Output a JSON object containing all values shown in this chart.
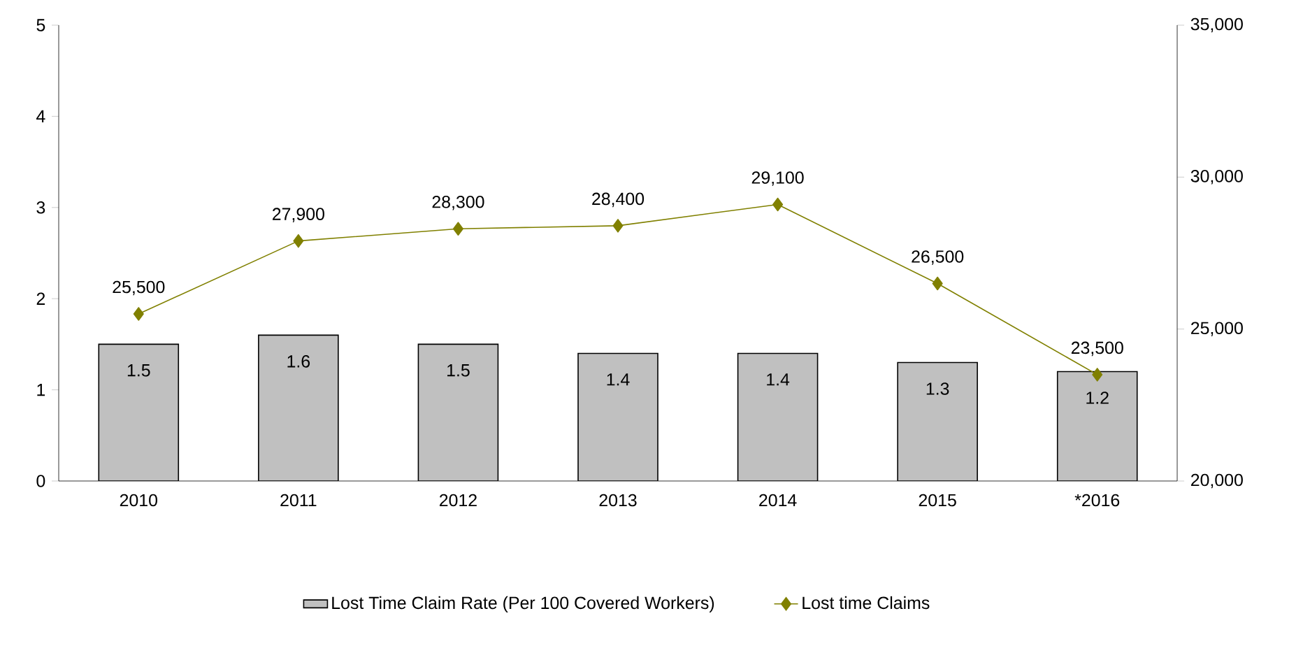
{
  "chart_data": {
    "type": "bar",
    "categories": [
      "2010",
      "2011",
      "2012",
      "2013",
      "2014",
      "2015",
      "*2016"
    ],
    "series": [
      {
        "name": "Lost Time Claim Rate (Per 100 Covered Workers)",
        "color": "#c0c0c0",
        "values": [
          1.5,
          1.6,
          1.5,
          1.4,
          1.4,
          1.3,
          1.2
        ],
        "value_labels": [
          "1.5",
          "1.6",
          "1.5",
          "1.4",
          "1.4",
          "1.3",
          "1.2"
        ]
      },
      {
        "name": "Lost time Claims",
        "type": "line",
        "axis": "y2",
        "color": "#808000",
        "values": [
          25500,
          27900,
          28300,
          28400,
          29100,
          26500,
          23500
        ],
        "value_labels": [
          "25,500",
          "27,900",
          "28,300",
          "28,400",
          "29,100",
          "26,500",
          "23,500"
        ]
      }
    ],
    "ylim": [
      0,
      5
    ],
    "yticks": [
      0,
      1,
      2,
      3,
      4,
      5
    ],
    "y2lim": [
      20000,
      35000
    ],
    "y2ticks": [
      {
        "value": 20000,
        "label": "20,000"
      },
      {
        "value": 25000,
        "label": "25,000"
      },
      {
        "value": 30000,
        "label": "30,000"
      },
      {
        "value": 35000,
        "label": "35,000"
      }
    ],
    "legend": "bottom",
    "marker": "diamond",
    "grid": false
  }
}
